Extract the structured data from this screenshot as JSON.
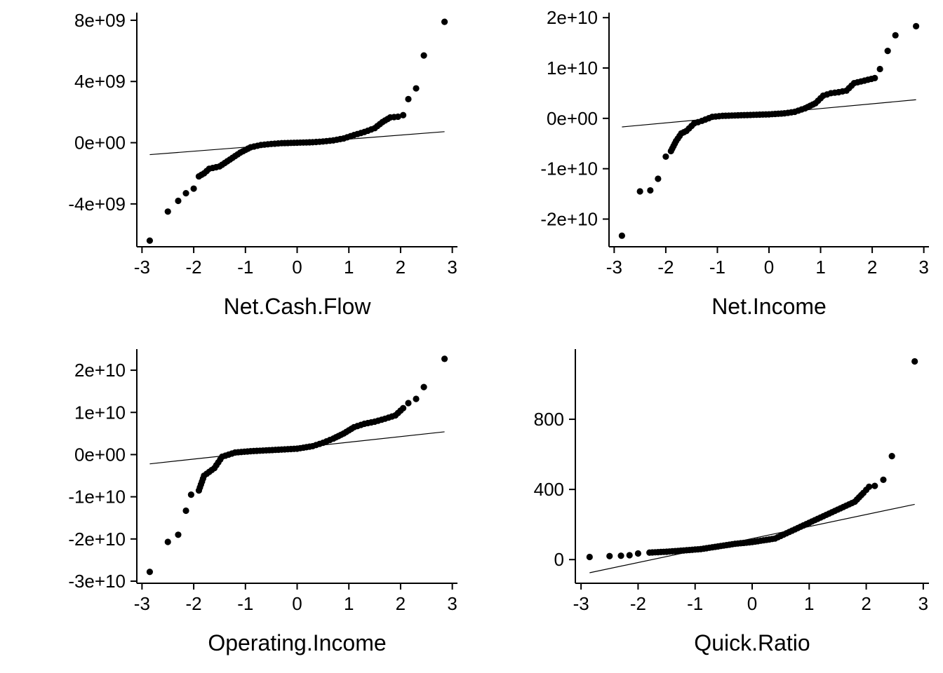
{
  "chart_data": [
    {
      "type": "scatter",
      "subtype": "qq-plot",
      "title": "",
      "xlabel": "Net.Cash.Flow",
      "ylabel": "",
      "xlim": [
        -3.1,
        3.1
      ],
      "ylim": [
        -6800000000.0,
        8500000000.0
      ],
      "xticks": [
        -3,
        -2,
        -1,
        0,
        1,
        2,
        3
      ],
      "xtick_labels": [
        "-3",
        "-2",
        "-1",
        "0",
        "1",
        "2",
        "3"
      ],
      "yticks": [
        -4000000000.0,
        0,
        4000000000.0,
        8000000000.0
      ],
      "ytick_labels": [
        "-4e+09",
        "0e+00",
        "4e+09",
        "8e+09"
      ],
      "reference_line": [
        [
          -2.85,
          -780000000.0
        ],
        [
          2.85,
          720000000.0
        ]
      ],
      "quantile_points": [
        [
          -2.85,
          -6400000000.0
        ],
        [
          -2.5,
          -4500000000.0
        ],
        [
          -2.3,
          -3800000000.0
        ],
        [
          -2.15,
          -3300000000.0
        ],
        [
          -2.0,
          -3000000000.0
        ],
        [
          -1.9,
          -2200000000.0
        ],
        [
          -1.8,
          -2000000000.0
        ],
        [
          -1.7,
          -1700000000.0
        ],
        [
          -1.5,
          -1550000000.0
        ],
        [
          -1.3,
          -1100000000.0
        ],
        [
          -1.1,
          -650000000.0
        ],
        [
          -0.9,
          -300000000.0
        ],
        [
          -0.7,
          -150000000.0
        ],
        [
          -0.5,
          -80000000.0
        ],
        [
          -0.3,
          -30000000.0
        ],
        [
          0,
          0.0
        ],
        [
          0.3,
          30000000.0
        ],
        [
          0.5,
          80000000.0
        ],
        [
          0.7,
          150000000.0
        ],
        [
          0.9,
          280000000.0
        ],
        [
          1.1,
          500000000.0
        ],
        [
          1.3,
          700000000.0
        ],
        [
          1.5,
          950000000.0
        ],
        [
          1.65,
          1350000000.0
        ],
        [
          1.8,
          1650000000.0
        ],
        [
          1.95,
          1700000000.0
        ],
        [
          2.05,
          1800000000.0
        ],
        [
          2.15,
          2850000000.0
        ],
        [
          2.3,
          3550000000.0
        ],
        [
          2.45,
          5700000000.0
        ],
        [
          2.85,
          7900000000.0
        ]
      ]
    },
    {
      "type": "scatter",
      "subtype": "qq-plot",
      "title": "",
      "xlabel": "Net.Income",
      "ylabel": "",
      "xlim": [
        -3.1,
        3.1
      ],
      "ylim": [
        -25500000000.0,
        21000000000.0
      ],
      "xticks": [
        -3,
        -2,
        -1,
        0,
        1,
        2,
        3
      ],
      "xtick_labels": [
        "-3",
        "-2",
        "-1",
        "0",
        "1",
        "2",
        "3"
      ],
      "yticks": [
        -20000000000.0,
        -10000000000.0,
        0,
        10000000000.0,
        20000000000.0
      ],
      "ytick_labels": [
        "-2e+10",
        "-1e+10",
        "0e+00",
        "1e+10",
        "2e+10"
      ],
      "reference_line": [
        [
          -2.85,
          -1700000000.0
        ],
        [
          2.85,
          3700000000.0
        ]
      ],
      "quantile_points": [
        [
          -2.85,
          -23300000000.0
        ],
        [
          -2.5,
          -14500000000.0
        ],
        [
          -2.3,
          -14300000000.0
        ],
        [
          -2.15,
          -12000000000.0
        ],
        [
          -2.0,
          -7600000000.0
        ],
        [
          -1.9,
          -6500000000.0
        ],
        [
          -1.8,
          -4500000000.0
        ],
        [
          -1.7,
          -3000000000.0
        ],
        [
          -1.6,
          -2500000000.0
        ],
        [
          -1.45,
          -1000000000.0
        ],
        [
          -1.3,
          -500000000.0
        ],
        [
          -1.1,
          300000000.0
        ],
        [
          -0.9,
          500000000.0
        ],
        [
          -0.6,
          600000000.0
        ],
        [
          -0.3,
          700000000.0
        ],
        [
          0,
          800000000.0
        ],
        [
          0.3,
          1000000000.0
        ],
        [
          0.5,
          1300000000.0
        ],
        [
          0.7,
          2000000000.0
        ],
        [
          0.9,
          3000000000.0
        ],
        [
          1.05,
          4500000000.0
        ],
        [
          1.2,
          5000000000.0
        ],
        [
          1.35,
          5200000000.0
        ],
        [
          1.5,
          5500000000.0
        ],
        [
          1.65,
          7000000000.0
        ],
        [
          1.85,
          7500000000.0
        ],
        [
          2.05,
          8000000000.0
        ],
        [
          2.15,
          9800000000.0
        ],
        [
          2.3,
          13400000000.0
        ],
        [
          2.45,
          16500000000.0
        ],
        [
          2.85,
          18300000000.0
        ]
      ]
    },
    {
      "type": "scatter",
      "subtype": "qq-plot",
      "title": "",
      "xlabel": "Operating.Income",
      "ylabel": "",
      "xlim": [
        -3.1,
        3.1
      ],
      "ylim": [
        -30500000000.0,
        25000000000.0
      ],
      "xticks": [
        -3,
        -2,
        -1,
        0,
        1,
        2,
        3
      ],
      "xtick_labels": [
        "-3",
        "-2",
        "-1",
        "0",
        "1",
        "2",
        "3"
      ],
      "yticks": [
        -30000000000.0,
        -20000000000.0,
        -10000000000.0,
        0,
        10000000000.0,
        20000000000.0
      ],
      "ytick_labels": [
        "-3e+10",
        "-2e+10",
        "-1e+10",
        "0e+00",
        "1e+10",
        "2e+10"
      ],
      "reference_line": [
        [
          -2.85,
          -2200000000.0
        ],
        [
          2.85,
          5400000000.0
        ]
      ],
      "quantile_points": [
        [
          -2.85,
          -27800000000.0
        ],
        [
          -2.5,
          -20700000000.0
        ],
        [
          -2.3,
          -19000000000.0
        ],
        [
          -2.15,
          -13300000000.0
        ],
        [
          -2.05,
          -9500000000.0
        ],
        [
          -1.9,
          -8500000000.0
        ],
        [
          -1.8,
          -5000000000.0
        ],
        [
          -1.6,
          -3200000000.0
        ],
        [
          -1.45,
          -500000000.0
        ],
        [
          -1.2,
          500000000.0
        ],
        [
          -0.9,
          800000000.0
        ],
        [
          -0.6,
          1000000000.0
        ],
        [
          -0.3,
          1200000000.0
        ],
        [
          0,
          1400000000.0
        ],
        [
          0.3,
          2000000000.0
        ],
        [
          0.5,
          2800000000.0
        ],
        [
          0.7,
          3800000000.0
        ],
        [
          0.9,
          5000000000.0
        ],
        [
          1.1,
          6500000000.0
        ],
        [
          1.3,
          7300000000.0
        ],
        [
          1.5,
          7800000000.0
        ],
        [
          1.7,
          8500000000.0
        ],
        [
          1.9,
          9300000000.0
        ],
        [
          2.05,
          11000000000.0
        ],
        [
          2.15,
          12200000000.0
        ],
        [
          2.3,
          13200000000.0
        ],
        [
          2.45,
          16000000000.0
        ],
        [
          2.85,
          22700000000.0
        ]
      ]
    },
    {
      "type": "scatter",
      "subtype": "qq-plot",
      "title": "",
      "xlabel": "Quick.Ratio",
      "ylabel": "",
      "xlim": [
        -3.1,
        3.1
      ],
      "ylim": [
        -135,
        1200
      ],
      "xticks": [
        -3,
        -2,
        -1,
        0,
        1,
        2,
        3
      ],
      "xtick_labels": [
        "-3",
        "-2",
        "-1",
        "0",
        "1",
        "2",
        "3"
      ],
      "yticks": [
        0,
        400,
        800
      ],
      "ytick_labels": [
        "0",
        "400",
        "800"
      ],
      "reference_line": [
        [
          -2.85,
          -75
        ],
        [
          2.85,
          315
        ]
      ],
      "quantile_points": [
        [
          -2.85,
          15
        ],
        [
          -2.5,
          20
        ],
        [
          -2.3,
          22
        ],
        [
          -2.15,
          25
        ],
        [
          -2.0,
          35
        ],
        [
          -1.8,
          40
        ],
        [
          -1.5,
          45
        ],
        [
          -1.2,
          52
        ],
        [
          -0.9,
          60
        ],
        [
          -0.6,
          75
        ],
        [
          -0.3,
          90
        ],
        [
          0,
          100
        ],
        [
          0.2,
          110
        ],
        [
          0.4,
          120
        ],
        [
          0.6,
          150
        ],
        [
          0.8,
          180
        ],
        [
          1.0,
          210
        ],
        [
          1.2,
          240
        ],
        [
          1.4,
          270
        ],
        [
          1.6,
          300
        ],
        [
          1.8,
          330
        ],
        [
          1.95,
          380
        ],
        [
          2.05,
          415
        ],
        [
          2.15,
          420
        ],
        [
          2.3,
          455
        ],
        [
          2.45,
          590
        ],
        [
          2.85,
          1130
        ]
      ]
    }
  ]
}
